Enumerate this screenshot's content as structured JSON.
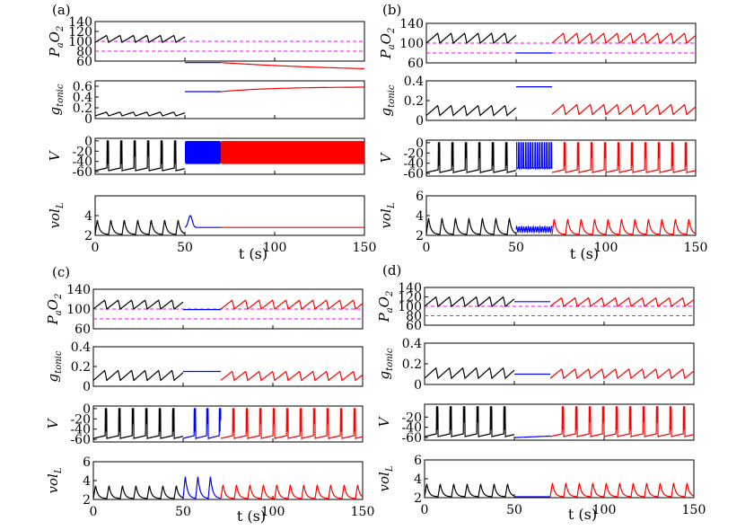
{
  "colors": {
    "before": "#000000",
    "during": "#0000ff",
    "after": "#ff0000",
    "threshold": "#ff00ff"
  },
  "chart_data": [
    {
      "panel_label": "(a)",
      "type": "line",
      "x_label": "t (s)",
      "x_range": [
        0,
        150
      ],
      "x_ticks": [
        0,
        50,
        100,
        150
      ],
      "x_tick_labels": [
        "0",
        "50",
        "100",
        "150"
      ],
      "segments_time": {
        "before_end": 50,
        "during_end": 70
      },
      "subplots": [
        {
          "ylabel_main": "P",
          "ylabel_sub": "a",
          "ylabel_main2": "O",
          "ylabel_sub2": "2",
          "name": "PaO2",
          "yrange": [
            60,
            140
          ],
          "ticks": [
            140,
            120,
            100,
            80,
            60
          ],
          "tick_labels": [
            "140",
            "120",
            "100",
            "80",
            "60"
          ],
          "thresholds": [
            100,
            80
          ],
          "before": {
            "kind": "saw",
            "low": 98,
            "high": 112,
            "period": 7.5
          },
          "during": {
            "kind": "flat",
            "value": 57
          },
          "after": {
            "kind": "decay",
            "from": 57,
            "to": 36,
            "tau": 90
          }
        },
        {
          "ylabel_main": "g",
          "ylabel_sub": "tonic",
          "name": "gtonic",
          "yrange": [
            0,
            0.7
          ],
          "ticks": [
            0.6,
            0.4,
            0.2,
            0
          ],
          "tick_labels": [
            "0.6",
            "0.4",
            "0.2",
            "0"
          ],
          "before": {
            "kind": "saw",
            "low": 0.05,
            "high": 0.12,
            "period": 7.5
          },
          "during": {
            "kind": "flat",
            "value": 0.5
          },
          "after": {
            "kind": "rise",
            "from": 0.5,
            "to": 0.59,
            "tau": 30
          }
        },
        {
          "ylabel_main": "V",
          "name": "V",
          "yrange": [
            -65,
            5
          ],
          "ticks": [
            0,
            -20,
            -40,
            -60
          ],
          "tick_labels": [
            "0",
            "-20",
            "-40",
            "-60"
          ],
          "before": {
            "kind": "spikes",
            "base": -58,
            "peak": 0,
            "period": 7.5,
            "burst": 2
          },
          "during": {
            "kind": "block",
            "low": -45,
            "high": 0
          },
          "after": {
            "kind": "block",
            "low": -45,
            "high": 0
          }
        },
        {
          "ylabel_main": "vol",
          "ylabel_sub": "L",
          "name": "volL",
          "yrange": [
            2,
            6
          ],
          "ticks": [
            4,
            2
          ],
          "tick_labels": [
            "4",
            "2"
          ],
          "before": {
            "kind": "breath",
            "base": 2.1,
            "peak": 3.6,
            "period": 7.5
          },
          "during": {
            "kind": "pulse",
            "base": 2.8,
            "peak": 4.0
          },
          "after": {
            "kind": "flat",
            "value": 2.8
          }
        }
      ]
    },
    {
      "panel_label": "(b)",
      "type": "line",
      "x_label": "t (s)",
      "x_range": [
        0,
        150
      ],
      "x_ticks": [
        0,
        50,
        100,
        150
      ],
      "x_tick_labels": [
        "0",
        "50",
        "100",
        "150"
      ],
      "segments_time": {
        "before_end": 50,
        "during_end": 70
      },
      "subplots": [
        {
          "ylabel_main": "P",
          "ylabel_sub": "a",
          "ylabel_main2": "O",
          "ylabel_sub2": "2",
          "name": "PaO2",
          "yrange": [
            60,
            140
          ],
          "ticks": [
            140,
            100,
            60
          ],
          "tick_labels": [
            "140",
            "100",
            "60"
          ],
          "thresholds": [
            100,
            80
          ],
          "before": {
            "kind": "saw",
            "low": 100,
            "high": 120,
            "period": 7.5
          },
          "during": {
            "kind": "flat",
            "value": 80
          },
          "after": {
            "kind": "saw",
            "low": 100,
            "high": 120,
            "period": 7.5
          }
        },
        {
          "ylabel_main": "g",
          "ylabel_sub": "tonic",
          "name": "gtonic",
          "yrange": [
            0,
            0.4
          ],
          "ticks": [
            0.4,
            0.2,
            0
          ],
          "tick_labels": [
            "0.4",
            "0.2",
            "0"
          ],
          "before": {
            "kind": "saw",
            "low": 0.05,
            "high": 0.15,
            "period": 7.5
          },
          "during": {
            "kind": "flat",
            "value": 0.34
          },
          "after": {
            "kind": "saw",
            "low": 0.06,
            "high": 0.16,
            "period": 7.5
          }
        },
        {
          "ylabel_main": "V",
          "name": "V",
          "yrange": [
            -65,
            5
          ],
          "ticks": [
            0,
            -20,
            -40,
            -60
          ],
          "tick_labels": [
            "0",
            "-20",
            "-40",
            "-60"
          ],
          "before": {
            "kind": "spikes",
            "base": -58,
            "peak": 0,
            "period": 7.5,
            "burst": 2
          },
          "during": {
            "kind": "fastspikes",
            "base": -52,
            "peak": 0,
            "period": 1.3
          },
          "after": {
            "kind": "spikes",
            "base": -58,
            "peak": 0,
            "period": 7.5,
            "burst": 2
          }
        },
        {
          "ylabel_main": "vol",
          "ylabel_sub": "L",
          "name": "volL",
          "yrange": [
            2,
            6
          ],
          "ticks": [
            6,
            4,
            2
          ],
          "tick_labels": [
            "6",
            "4",
            "2"
          ],
          "before": {
            "kind": "breath",
            "base": 2.1,
            "peak": 3.8,
            "period": 7.5
          },
          "during": {
            "kind": "wobble",
            "base": 2.6,
            "amp": 0.3,
            "period": 1.3
          },
          "after": {
            "kind": "breath",
            "base": 2.1,
            "peak": 3.7,
            "period": 7.5
          }
        }
      ]
    },
    {
      "panel_label": "(c)",
      "type": "line",
      "x_label": "t (s)",
      "x_range": [
        0,
        150
      ],
      "x_ticks": [
        0,
        50,
        100,
        150
      ],
      "x_tick_labels": [
        "0",
        "50",
        "100",
        "150"
      ],
      "segments_time": {
        "before_end": 50,
        "during_end": 71
      },
      "subplots": [
        {
          "ylabel_main": "P",
          "ylabel_sub": "a",
          "ylabel_main2": "O",
          "ylabel_sub2": "2",
          "name": "PaO2",
          "yrange": [
            60,
            140
          ],
          "ticks": [
            140,
            100,
            60
          ],
          "tick_labels": [
            "140",
            "100",
            "60"
          ],
          "thresholds": [
            100,
            80
          ],
          "before": {
            "kind": "saw",
            "low": 100,
            "high": 118,
            "period": 7.5
          },
          "during": {
            "kind": "flat",
            "value": 99
          },
          "after": {
            "kind": "saw",
            "low": 100,
            "high": 118,
            "period": 7.5
          }
        },
        {
          "ylabel_main": "g",
          "ylabel_sub": "tonic",
          "name": "gtonic",
          "yrange": [
            0,
            0.4
          ],
          "ticks": [
            0.4,
            0.2,
            0
          ],
          "tick_labels": [
            "0.4",
            "0.2",
            "0"
          ],
          "before": {
            "kind": "saw",
            "low": 0.06,
            "high": 0.16,
            "period": 7.5
          },
          "during": {
            "kind": "flat",
            "value": 0.15
          },
          "after": {
            "kind": "saw",
            "low": 0.06,
            "high": 0.15,
            "period": 7.5
          }
        },
        {
          "ylabel_main": "V",
          "name": "V",
          "yrange": [
            -65,
            5
          ],
          "ticks": [
            0,
            -20,
            -40,
            -60
          ],
          "tick_labels": [
            "0",
            "-20",
            "-40",
            "-60"
          ],
          "before": {
            "kind": "spikes",
            "base": -58,
            "peak": 0,
            "period": 7.5,
            "burst": 2
          },
          "during": {
            "kind": "spikes",
            "base": -58,
            "peak": 0,
            "period": 7.0,
            "burst": 2
          },
          "after": {
            "kind": "spikes",
            "base": -58,
            "peak": 0,
            "period": 7.5,
            "burst": 2
          }
        },
        {
          "ylabel_main": "vol",
          "ylabel_sub": "L",
          "name": "volL",
          "yrange": [
            2,
            6
          ],
          "ticks": [
            6,
            4,
            2
          ],
          "tick_labels": [
            "6",
            "4",
            "2"
          ],
          "before": {
            "kind": "breath",
            "base": 2.1,
            "peak": 3.5,
            "period": 7.5
          },
          "during": {
            "kind": "breath",
            "base": 2.1,
            "peak": 4.5,
            "period": 7.0
          },
          "after": {
            "kind": "breath",
            "base": 2.1,
            "peak": 3.6,
            "period": 7.5
          }
        }
      ]
    },
    {
      "panel_label": "(d)",
      "type": "line",
      "x_label": "t (s)",
      "x_range": [
        0,
        150
      ],
      "x_ticks": [
        0,
        50,
        100,
        150
      ],
      "x_tick_labels": [
        "0",
        "50",
        "100",
        "150"
      ],
      "segments_time": {
        "before_end": 50,
        "during_end": 70
      },
      "subplots": [
        {
          "ylabel_main": "P",
          "ylabel_sub": "a",
          "ylabel_main2": "O",
          "ylabel_sub2": "2",
          "name": "PaO2",
          "yrange": [
            60,
            140
          ],
          "ticks": [
            140,
            120,
            100,
            80,
            60
          ],
          "tick_labels": [
            "140",
            "120",
            "100",
            "80",
            "60"
          ],
          "thresholds": [
            100,
            80
          ],
          "before": {
            "kind": "saw",
            "low": 100,
            "high": 120,
            "period": 7.5
          },
          "during": {
            "kind": "flat",
            "value": 110
          },
          "after": {
            "kind": "saw",
            "low": 100,
            "high": 118,
            "period": 7.5
          }
        },
        {
          "ylabel_main": "g",
          "ylabel_sub": "tonic",
          "name": "gtonic",
          "yrange": [
            0,
            0.4
          ],
          "ticks": [
            0.4,
            0.2,
            0
          ],
          "tick_labels": [
            "0.4",
            "0.2",
            "0"
          ],
          "before": {
            "kind": "saw",
            "low": 0.06,
            "high": 0.16,
            "period": 7.5
          },
          "during": {
            "kind": "flat",
            "value": 0.1
          },
          "after": {
            "kind": "saw",
            "low": 0.06,
            "high": 0.15,
            "period": 7.5
          }
        },
        {
          "ylabel_main": "V",
          "name": "V",
          "yrange": [
            -65,
            5
          ],
          "ticks": [
            -20,
            -40,
            -60
          ],
          "tick_labels": [
            "-20",
            "-40",
            "-60"
          ],
          "before": {
            "kind": "spikes",
            "base": -58,
            "peak": 0,
            "period": 7.5,
            "burst": 2
          },
          "during": {
            "kind": "quiet",
            "from": -60,
            "to": -57
          },
          "after": {
            "kind": "spikes",
            "base": -58,
            "peak": 0,
            "period": 7.5,
            "burst": 2
          }
        },
        {
          "ylabel_main": "vol",
          "ylabel_sub": "L",
          "name": "volL",
          "yrange": [
            2,
            6
          ],
          "ticks": [
            6,
            4,
            2
          ],
          "tick_labels": [
            "6",
            "4",
            "2"
          ],
          "before": {
            "kind": "breath",
            "base": 2.1,
            "peak": 3.5,
            "period": 7.5
          },
          "during": {
            "kind": "flat",
            "value": 2.1
          },
          "after": {
            "kind": "breath",
            "base": 2.1,
            "peak": 3.6,
            "period": 7.5
          }
        }
      ]
    }
  ]
}
